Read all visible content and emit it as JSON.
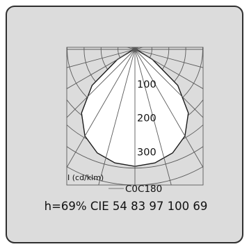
{
  "chart_data": {
    "type": "polar",
    "unit_label": "I (cd/klm)",
    "radial_ticks": [
      "100",
      "200",
      "300"
    ],
    "radial_tick_values": [
      100,
      200,
      300
    ],
    "radial_range": [
      0,
      400
    ],
    "angle_spokes_deg": [
      0,
      15,
      30,
      45,
      60,
      75,
      90
    ],
    "series": [
      {
        "name": "C0C180",
        "color": "#777777",
        "angles_deg": [
          0,
          10,
          20,
          30,
          40,
          50,
          60,
          70,
          80,
          90
        ],
        "values": [
          345,
          340,
          325,
          295,
          245,
          165,
          60,
          10,
          2,
          0
        ]
      }
    ],
    "footer": "h=69% CIE 54 83 97 100 69"
  }
}
